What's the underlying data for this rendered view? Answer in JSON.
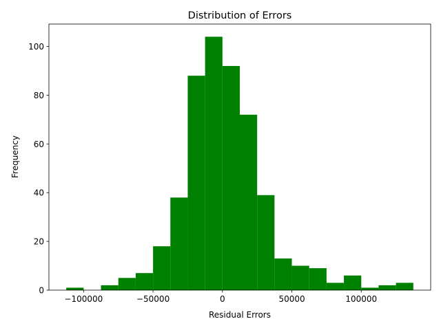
{
  "chart_data": {
    "type": "bar",
    "title": "Distribution of Errors",
    "xlabel": "Residual Errors",
    "ylabel": "Frequency",
    "bar_color": "#008000",
    "bin_width": 12500,
    "bins": [
      {
        "start": -112500,
        "end": -100000,
        "count": 1
      },
      {
        "start": -100000,
        "end": -87500,
        "count": 0
      },
      {
        "start": -87500,
        "end": -75000,
        "count": 2
      },
      {
        "start": -75000,
        "end": -62500,
        "count": 5
      },
      {
        "start": -62500,
        "end": -50000,
        "count": 7
      },
      {
        "start": -50000,
        "end": -37500,
        "count": 18
      },
      {
        "start": -37500,
        "end": -25000,
        "count": 38
      },
      {
        "start": -25000,
        "end": -12500,
        "count": 88
      },
      {
        "start": -12500,
        "end": 0,
        "count": 104
      },
      {
        "start": 0,
        "end": 12500,
        "count": 92
      },
      {
        "start": 12500,
        "end": 25000,
        "count": 72
      },
      {
        "start": 25000,
        "end": 37500,
        "count": 39
      },
      {
        "start": 37500,
        "end": 50000,
        "count": 13
      },
      {
        "start": 50000,
        "end": 62500,
        "count": 10
      },
      {
        "start": 62500,
        "end": 75000,
        "count": 9
      },
      {
        "start": 75000,
        "end": 87500,
        "count": 3
      },
      {
        "start": 87500,
        "end": 100000,
        "count": 6
      },
      {
        "start": 100000,
        "end": 112500,
        "count": 1
      },
      {
        "start": 112500,
        "end": 125000,
        "count": 2
      },
      {
        "start": 125000,
        "end": 137500,
        "count": 3
      }
    ],
    "xlim": [
      -125000,
      150000
    ],
    "ylim": [
      0,
      109.2
    ],
    "x_ticks": [
      -100000,
      -50000,
      0,
      50000,
      100000
    ],
    "x_tick_labels": [
      "−100000",
      "−50000",
      "0",
      "50000",
      "100000"
    ],
    "y_ticks": [
      0,
      20,
      40,
      60,
      80,
      100
    ],
    "y_tick_labels": [
      "0",
      "20",
      "40",
      "60",
      "80",
      "100"
    ],
    "grid": false,
    "legend": "none"
  }
}
